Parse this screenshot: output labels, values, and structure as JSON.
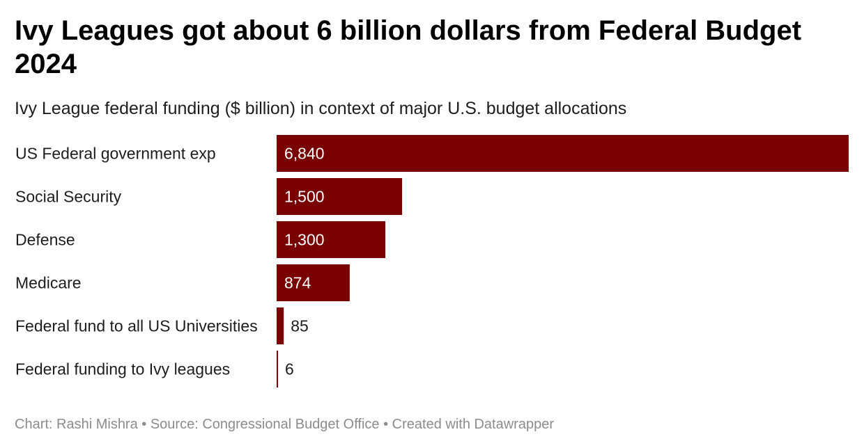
{
  "title": "Ivy Leagues got about 6 billion dollars from Federal Budget 2024",
  "subtitle": "Ivy League federal funding ($ billion) in context of major U.S. budget allocations",
  "footer": "Chart: Rashi Mishra • Source: Congressional Budget Office • Created with Datawrapper",
  "colors": {
    "bar": "#780000",
    "label_inside": "#ffffff",
    "label_outside": "#1d1d1d",
    "footer_text": "#8c8c8c"
  },
  "chart_data": {
    "type": "bar",
    "orientation": "horizontal",
    "categories": [
      "US Federal government exp",
      "Social Security",
      "Defense",
      "Medicare",
      "Federal fund to all US Universities",
      "Federal funding to Ivy leagues"
    ],
    "values": [
      6840,
      1500,
      1300,
      874,
      85,
      6
    ],
    "value_labels": [
      "6,840",
      "1,500",
      "1,300",
      "874",
      "85",
      "6"
    ],
    "xlim": [
      0,
      6840
    ],
    "grid": false,
    "legend": "none"
  }
}
